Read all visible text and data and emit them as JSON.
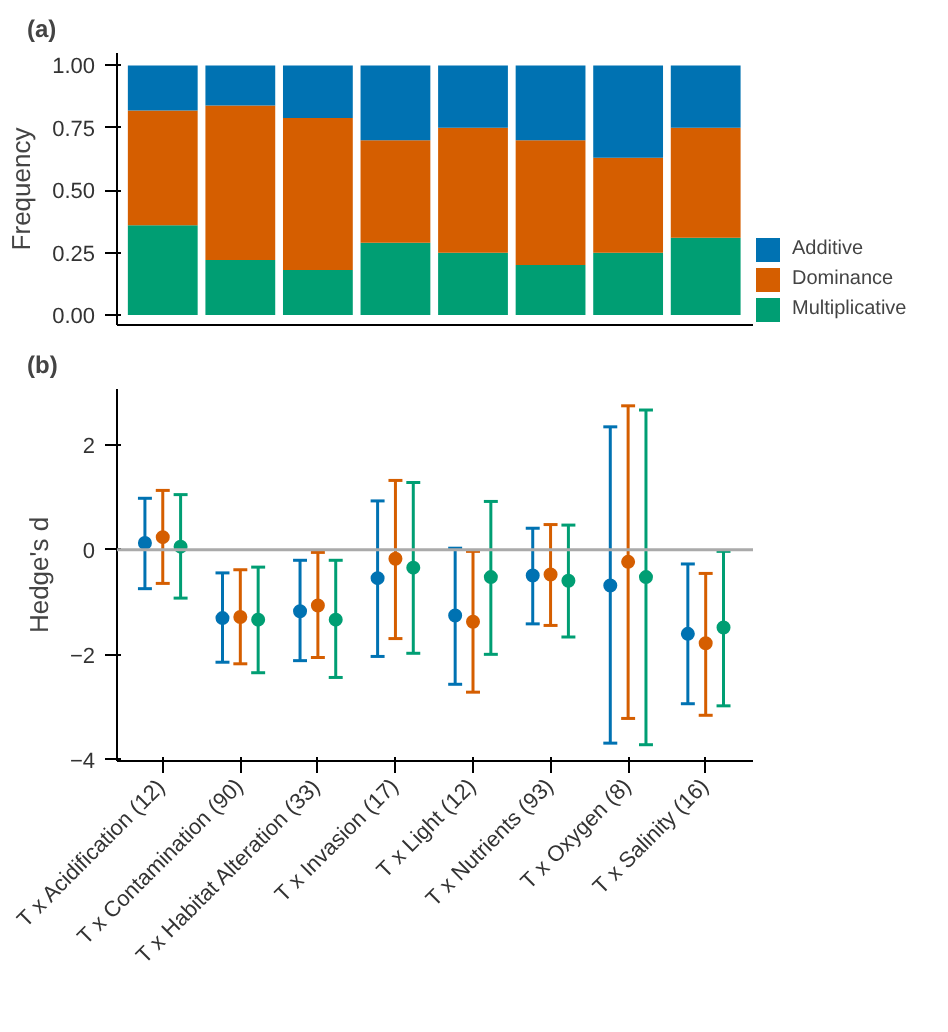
{
  "chart_data": [
    {
      "type": "bar",
      "title": "(a)",
      "ylabel": "Frequency",
      "stacked": true,
      "legend": "right",
      "tick_labels": "y",
      "grid": false,
      "categories": [
        null,
        null,
        null,
        null,
        null,
        null,
        null,
        null
      ],
      "ylim": [
        -0.04,
        1.05
      ],
      "yticks": [
        {
          "value": 0,
          "label": "0.00"
        },
        {
          "value": 0.25,
          "label": "0.25"
        },
        {
          "value": 0.5,
          "label": "0.50"
        },
        {
          "value": 0.75,
          "label": "0.75"
        },
        {
          "value": 1,
          "label": "1.00"
        }
      ],
      "series": [
        {
          "name": "Multiplicative",
          "color": "#009e73",
          "values": [
            0.36,
            0.22,
            0.18,
            0.29,
            0.25,
            0.2,
            0.25,
            0.31
          ]
        },
        {
          "name": "Dominance",
          "color": "#d55e00",
          "values": [
            0.46,
            0.62,
            0.61,
            0.41,
            0.5,
            0.5,
            0.38,
            0.44
          ]
        },
        {
          "name": "Additive",
          "color": "#0072b2",
          "values": [
            0.18,
            0.16,
            0.21,
            0.3,
            0.25,
            0.3,
            0.37,
            0.25
          ]
        }
      ]
    },
    {
      "type": "scatter",
      "title": "(b)",
      "ylabel": "Hedge's d",
      "marker": "circle",
      "grid": false,
      "categories": [
        "T x Acidification (12)",
        "T x Contamination (90)",
        "T x Habitat Alteration (33)",
        "T x Invasion (17)",
        "T x Light (12)",
        "T x Nutrients (93)",
        "T x Oxygen (8)",
        "T x Salinity (16)"
      ],
      "ylim": [
        -4.02,
        3.06
      ],
      "yticks": [
        -4,
        -2,
        0,
        2
      ],
      "ref_lines": [
        {
          "axis": "y",
          "value": 0,
          "label": null,
          "color": "#aaaaaa"
        }
      ],
      "series": [
        {
          "color": "#0072b2",
          "values": [
            0.13,
            -1.3,
            -1.17,
            -0.54,
            -1.25,
            -0.49,
            -0.68,
            -1.6
          ],
          "errors": [
            [
              -0.74,
              0.98
            ],
            [
              -2.14,
              -0.44
            ],
            [
              -2.11,
              -0.2
            ],
            [
              -2.03,
              0.93
            ],
            [
              -2.56,
              0.03
            ],
            [
              -1.41,
              0.41
            ],
            [
              -3.68,
              2.34
            ],
            [
              -2.93,
              -0.27
            ]
          ]
        },
        {
          "color": "#d55e00",
          "values": [
            0.24,
            -1.28,
            -1.06,
            -0.17,
            -1.37,
            -0.47,
            -0.23,
            -1.78
          ],
          "errors": [
            [
              -0.64,
              1.13
            ],
            [
              -2.17,
              -0.38
            ],
            [
              -2.05,
              -0.05
            ],
            [
              -1.69,
              1.32
            ],
            [
              -2.71,
              -0.03
            ],
            [
              -1.44,
              0.48
            ],
            [
              -3.21,
              2.74
            ],
            [
              -3.15,
              -0.45
            ]
          ]
        },
        {
          "color": "#009e73",
          "values": [
            0.06,
            -1.33,
            -1.33,
            -0.34,
            -0.52,
            -0.59,
            -0.52,
            -1.48
          ],
          "errors": [
            [
              -0.92,
              1.05
            ],
            [
              -2.34,
              -0.33
            ],
            [
              -2.43,
              -0.2
            ],
            [
              -1.97,
              1.28
            ],
            [
              -1.99,
              0.92
            ],
            [
              -1.66,
              0.47
            ],
            [
              -3.71,
              2.66
            ],
            [
              -2.97,
              -0.03
            ]
          ]
        }
      ]
    }
  ]
}
